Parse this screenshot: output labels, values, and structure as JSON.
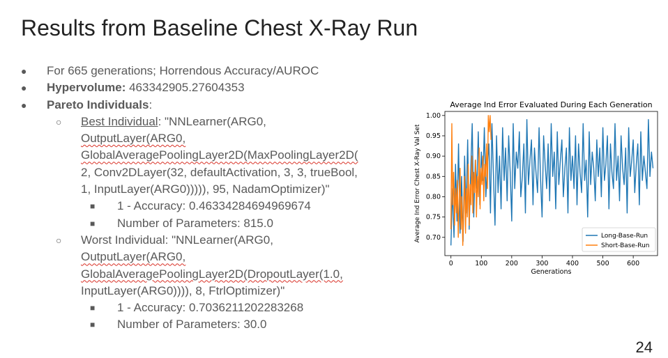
{
  "slide": {
    "title": "Results from Baseline Chest X-Ray Run",
    "page_number": "24",
    "bullets": {
      "generations": "For 665 generations; Horrendous Accuracy/AUROC",
      "hypervolume_label": "Hypervolume:",
      "hypervolume_value": " 463342905.27604353",
      "pareto_label": "Pareto Individuals",
      "pareto_colon": ":",
      "best": {
        "label": "Best Individual",
        "lines": [
          ": \"NNLearner(ARG0,",
          "OutputLayer(ARG0,",
          "GlobalAveragePoolingLayer2D(MaxPoolingLayer2D(",
          "2, Conv2DLayer(32, defaultActivation, 3, 3, trueBool,",
          "1, InputLayer(ARG0))))), 95, NadamOptimizer)\""
        ],
        "accuracy": "1 - Accuracy: 0.46334284694969674",
        "params": "Number of Parameters: 815.0"
      },
      "worst": {
        "lines": [
          "Worst Individual: \"NNLearner(ARG0,",
          "OutputLayer(ARG0,",
          "GlobalAveragePoolingLayer2D(DropoutLayer(1.0,",
          "InputLayer(ARG0)))), 8, FtrlOptimizer)\""
        ],
        "accuracy": "1 - Accuracy: 0.7036211202283268",
        "params": "Number of Parameters: 30.0"
      },
      "symbols": {
        "level1": "●",
        "level2": "○",
        "level3": "■"
      }
    }
  },
  "chart_data": {
    "type": "line",
    "title": "Average Ind Error Evaluated During Each Generation",
    "xlabel": "Generations",
    "ylabel": "Average Ind Error Chest X-Ray Val Set",
    "xlim": [
      -20,
      680
    ],
    "ylim": [
      0.655,
      1.01
    ],
    "xticks": [
      0,
      100,
      200,
      300,
      400,
      500,
      600
    ],
    "yticks": [
      0.7,
      0.75,
      0.8,
      0.85,
      0.9,
      0.95,
      1.0
    ],
    "ytick_labels": [
      "0.70",
      "0.75",
      "0.80",
      "0.85",
      "0.90",
      "0.95",
      "1.00"
    ],
    "legend_position": "lower-right",
    "series": [
      {
        "name": "Long-Base-Run",
        "color": "#1f77b4",
        "x": [
          0,
          5,
          10,
          15,
          20,
          25,
          30,
          35,
          40,
          45,
          50,
          55,
          60,
          65,
          70,
          75,
          80,
          85,
          90,
          95,
          100,
          105,
          110,
          115,
          120,
          125,
          130,
          135,
          140,
          145,
          150,
          155,
          160,
          165,
          170,
          175,
          180,
          185,
          190,
          195,
          200,
          205,
          210,
          215,
          220,
          225,
          230,
          235,
          240,
          245,
          250,
          255,
          260,
          265,
          270,
          275,
          280,
          285,
          290,
          295,
          300,
          305,
          310,
          315,
          320,
          325,
          330,
          335,
          340,
          345,
          350,
          355,
          360,
          365,
          370,
          375,
          380,
          385,
          390,
          395,
          400,
          405,
          410,
          415,
          420,
          425,
          430,
          435,
          440,
          445,
          450,
          455,
          460,
          465,
          470,
          475,
          480,
          485,
          490,
          495,
          500,
          505,
          510,
          515,
          520,
          525,
          530,
          535,
          540,
          545,
          550,
          555,
          560,
          565,
          570,
          575,
          580,
          585,
          590,
          595,
          600,
          605,
          610,
          615,
          620,
          625,
          630,
          635,
          640,
          645,
          650,
          655,
          660,
          665
        ],
        "y": [
          0.68,
          0.82,
          0.7,
          0.88,
          0.74,
          0.93,
          0.71,
          0.85,
          0.69,
          0.9,
          0.76,
          0.94,
          0.72,
          0.86,
          0.98,
          0.75,
          0.89,
          0.82,
          0.96,
          0.78,
          0.91,
          0.84,
          0.97,
          0.8,
          0.88,
          0.93,
          0.76,
          0.98,
          0.85,
          0.73,
          0.95,
          0.81,
          0.9,
          0.77,
          0.97,
          0.84,
          0.92,
          0.79,
          0.95,
          0.86,
          0.74,
          0.98,
          0.82,
          0.91,
          0.87,
          0.96,
          0.8,
          0.85,
          0.93,
          0.76,
          0.99,
          0.83,
          0.89,
          0.94,
          0.78,
          0.92,
          0.86,
          0.81,
          0.97,
          0.84,
          0.75,
          0.95,
          0.88,
          0.82,
          0.93,
          0.79,
          0.98,
          0.85,
          0.91,
          0.77,
          0.96,
          0.83,
          0.89,
          0.94,
          0.8,
          0.87,
          0.92,
          0.76,
          0.97,
          0.84,
          0.9,
          0.82,
          0.95,
          0.78,
          0.93,
          0.86,
          0.81,
          0.98,
          0.84,
          0.89,
          0.75,
          0.96,
          0.83,
          0.91,
          0.87,
          0.79,
          0.94,
          0.85,
          0.92,
          0.8,
          0.97,
          0.84,
          0.88,
          0.95,
          0.77,
          0.93,
          0.86,
          0.82,
          0.98,
          0.84,
          0.9,
          0.79,
          0.95,
          0.87,
          0.83,
          0.92,
          0.76,
          0.97,
          0.85,
          0.89,
          0.94,
          0.81,
          0.88,
          0.93,
          0.78,
          0.96,
          0.84,
          0.9,
          0.86,
          0.82,
          0.99,
          0.85,
          0.91,
          0.87
        ]
      },
      {
        "name": "Short-Base-Run",
        "color": "#ff7f0e",
        "x": [
          0,
          3,
          6,
          9,
          12,
          15,
          18,
          21,
          24,
          27,
          30,
          33,
          36,
          39,
          42,
          45,
          48,
          51,
          54,
          57,
          60,
          63,
          66,
          69,
          72,
          75,
          78,
          81,
          84,
          87,
          90,
          93,
          96,
          99,
          102,
          105,
          108,
          111,
          114,
          117,
          120,
          123,
          126,
          129,
          132
        ],
        "y": [
          0.72,
          0.98,
          0.78,
          0.86,
          0.73,
          0.82,
          0.76,
          0.84,
          0.7,
          0.79,
          0.87,
          0.72,
          0.8,
          0.68,
          0.77,
          0.85,
          0.71,
          0.82,
          0.75,
          0.88,
          0.73,
          0.83,
          0.78,
          0.9,
          0.76,
          0.86,
          0.81,
          0.89,
          0.75,
          0.85,
          0.8,
          0.92,
          0.77,
          0.87,
          0.83,
          0.9,
          0.79,
          0.88,
          0.85,
          0.93,
          0.82,
          1.0,
          0.96,
          1.0,
          0.94
        ]
      }
    ]
  }
}
